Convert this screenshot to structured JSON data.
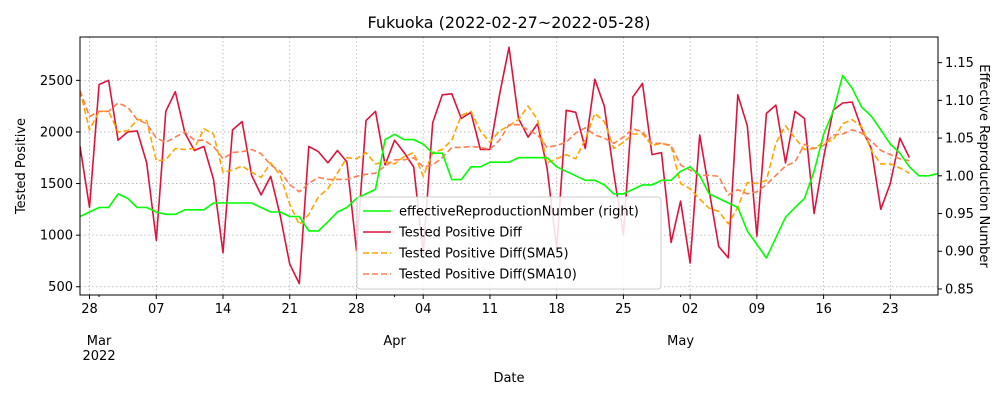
{
  "chart_data": {
    "type": "line",
    "title": "Fukuoka (2022-02-27~2022-05-28)",
    "xlabel": "Date",
    "ylabel_left": "Tested Positive",
    "ylabel_right": "Effective Reproduction Number",
    "x_start": "2022-02-27",
    "x_end": "2022-05-28",
    "xlim": [
      "2022-02-27",
      "2022-05-28"
    ],
    "ylim_left": [
      420,
      2920
    ],
    "ylim_right": [
      0.842,
      1.184
    ],
    "left_ticks": [
      500,
      1000,
      1500,
      2000,
      2500
    ],
    "right_ticks": [
      0.85,
      0.9,
      0.95,
      1.0,
      1.05,
      1.1,
      1.15
    ],
    "right_tick_labels": [
      "0.85",
      "0.90",
      "0.95",
      "1.00",
      "1.05",
      "1.10",
      "1.15"
    ],
    "x_ticks": [
      {
        "date": "2022-02-28",
        "label": "28",
        "sub": ""
      },
      {
        "date": "2022-03-01",
        "label": "",
        "sub": "Mar\n2022"
      },
      {
        "date": "2022-03-07",
        "label": "07",
        "sub": ""
      },
      {
        "date": "2022-03-14",
        "label": "14",
        "sub": ""
      },
      {
        "date": "2022-03-21",
        "label": "21",
        "sub": ""
      },
      {
        "date": "2022-03-28",
        "label": "28",
        "sub": ""
      },
      {
        "date": "2022-04-01",
        "label": "",
        "sub": "Apr"
      },
      {
        "date": "2022-04-04",
        "label": "04",
        "sub": ""
      },
      {
        "date": "2022-04-11",
        "label": "11",
        "sub": ""
      },
      {
        "date": "2022-04-18",
        "label": "18",
        "sub": ""
      },
      {
        "date": "2022-04-25",
        "label": "25",
        "sub": ""
      },
      {
        "date": "2022-05-01",
        "label": "",
        "sub": "May"
      },
      {
        "date": "2022-05-02",
        "label": "02",
        "sub": ""
      },
      {
        "date": "2022-05-09",
        "label": "09",
        "sub": ""
      },
      {
        "date": "2022-05-16",
        "label": "16",
        "sub": ""
      },
      {
        "date": "2022-05-23",
        "label": "23",
        "sub": ""
      }
    ],
    "grid": true,
    "legend_position": "lower-center",
    "series": [
      {
        "name": "effectiveReproductionNumber (right)",
        "axis": "right",
        "color": "#00ff00",
        "style": "solid",
        "values": [
          0.946,
          0.952,
          0.958,
          0.958,
          0.976,
          0.97,
          0.958,
          0.958,
          0.952,
          0.949,
          0.949,
          0.955,
          0.955,
          0.955,
          0.964,
          0.964,
          0.964,
          0.964,
          0.964,
          0.958,
          0.952,
          0.952,
          0.946,
          0.946,
          0.927,
          0.927,
          0.939,
          0.952,
          0.958,
          0.97,
          0.976,
          0.982,
          1.048,
          1.055,
          1.048,
          1.048,
          1.042,
          1.03,
          1.03,
          0.995,
          0.995,
          1.012,
          1.012,
          1.018,
          1.018,
          1.018,
          1.024,
          1.024,
          1.024,
          1.024,
          1.012,
          1.006,
          1.0,
          0.994,
          0.994,
          0.988,
          0.976,
          0.976,
          0.982,
          0.988,
          0.988,
          0.994,
          0.994,
          1.006,
          1.012,
          1.0,
          0.976,
          0.97,
          0.964,
          0.958,
          0.927,
          0.909,
          0.891,
          0.918,
          0.945,
          0.958,
          0.97,
          1.006,
          1.055,
          1.085,
          1.133,
          1.116,
          1.091,
          1.079,
          1.061,
          1.042,
          1.03,
          1.012,
          1.0,
          1.0,
          1.003,
          1.0,
          1.0,
          1.0,
          0.985
        ]
      },
      {
        "name": "Tested Positive Diff",
        "axis": "left",
        "color": "#dc143c",
        "style": "solid",
        "values": [
          1860,
          1270,
          2460,
          2500,
          1920,
          2000,
          2010,
          1700,
          950,
          2200,
          2390,
          1990,
          1820,
          1860,
          1540,
          830,
          2020,
          2100,
          1580,
          1390,
          1570,
          1190,
          720,
          530,
          1860,
          1810,
          1700,
          1820,
          1710,
          850,
          2110,
          2200,
          1680,
          1920,
          1800,
          1660,
          820,
          2090,
          2360,
          2370,
          2130,
          2190,
          1830,
          1830,
          2360,
          2820,
          2130,
          1950,
          2080,
          1650,
          870,
          2210,
          2190,
          1840,
          2510,
          2250,
          1590,
          1000,
          2340,
          2470,
          1780,
          1800,
          930,
          1330,
          730,
          1970,
          1430,
          890,
          780,
          2360,
          2060,
          990,
          2180,
          2260,
          1700,
          2200,
          2130,
          1210,
          1750,
          2210,
          2280,
          2290,
          2030,
          1840,
          1250,
          1500,
          1940,
          1750
        ]
      },
      {
        "name": "Tested Positive Diff(SMA5)",
        "axis": "left",
        "color": "#ffa500",
        "style": "dashed",
        "values": [
          2400,
          2020,
          2200,
          2200,
          2000,
          2010,
          2120,
          2110,
          1720,
          1730,
          1840,
          1830,
          1840,
          2030,
          1980,
          1610,
          1630,
          1670,
          1610,
          1560,
          1700,
          1580,
          1300,
          1100,
          1200,
          1370,
          1450,
          1600,
          1750,
          1740,
          1800,
          1690,
          1710,
          1690,
          1760,
          1800,
          1570,
          1800,
          1830,
          1920,
          2160,
          2200,
          2010,
          1900,
          2010,
          2060,
          2120,
          2250,
          2120,
          1700,
          1740,
          1780,
          1740,
          1930,
          2180,
          2100,
          1840,
          1900,
          1980,
          1980,
          1870,
          1890,
          1860,
          1500,
          1450,
          1350,
          1260,
          1230,
          1110,
          1270,
          1510,
          1500,
          1530,
          1890,
          2060,
          1940,
          1830,
          1840,
          1900,
          1920,
          2080,
          2120,
          2050,
          1820,
          1690,
          1690,
          1650,
          1600
        ]
      },
      {
        "name": "Tested Positive Diff(SMA10)",
        "axis": "left",
        "color": "#ff7f50",
        "style": "dashed",
        "values": [
          2400,
          2150,
          2200,
          2200,
          2280,
          2240,
          2120,
          2080,
          1940,
          1900,
          1950,
          2000,
          1920,
          1920,
          1860,
          1740,
          1800,
          1810,
          1830,
          1790,
          1680,
          1620,
          1490,
          1420,
          1500,
          1560,
          1540,
          1540,
          1540,
          1570,
          1590,
          1600,
          1670,
          1730,
          1730,
          1750,
          1660,
          1680,
          1750,
          1850,
          1850,
          1860,
          1850,
          1830,
          1920,
          2070,
          2070,
          2020,
          1970,
          1850,
          1870,
          1900,
          1990,
          2040,
          1970,
          1940,
          1890,
          1950,
          2030,
          2000,
          1890,
          1890,
          1870,
          1680,
          1630,
          1580,
          1580,
          1570,
          1390,
          1440,
          1400,
          1420,
          1490,
          1580,
          1670,
          1710,
          1880,
          1840,
          1870,
          1970,
          1980,
          2020,
          1990,
          1910,
          1820,
          1780,
          1740,
          1720
        ]
      }
    ]
  }
}
